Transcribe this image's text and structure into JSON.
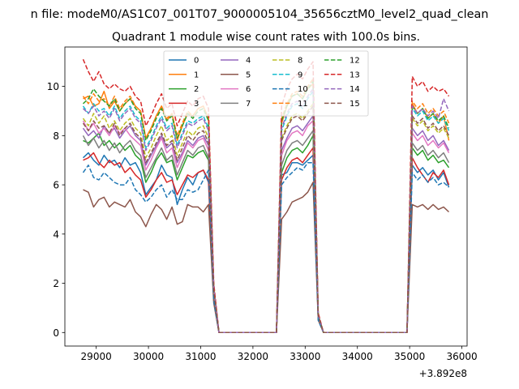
{
  "chart_data": {
    "type": "line",
    "suptitle": "n file: modeM0/AS1C07_001T07_9000005104_35656cztM0_level2_quad_clean",
    "title": "Quadrant 1 module wise count rates with 100.0s bins.",
    "xlabel": "",
    "ylabel": "",
    "x_offset_label": "+3.892e8",
    "xlim": [
      28400,
      36100
    ],
    "ylim": [
      -0.55,
      11.6
    ],
    "xticks": [
      29000,
      30000,
      31000,
      32000,
      33000,
      34000,
      35000,
      36000
    ],
    "xtick_labels": [
      "29000",
      "30000",
      "31000",
      "32000",
      "33000",
      "34000",
      "35000",
      "36000"
    ],
    "yticks": [
      0,
      2,
      4,
      6,
      8,
      10
    ],
    "ytick_labels": [
      "0",
      "2",
      "4",
      "6",
      "8",
      "10"
    ],
    "legend_position": "top-center",
    "x": [
      28750,
      28850,
      28950,
      29050,
      29150,
      29250,
      29350,
      29450,
      29550,
      29650,
      29750,
      29850,
      29950,
      30050,
      30150,
      30250,
      30350,
      30450,
      30550,
      30650,
      30750,
      30850,
      30950,
      31050,
      31150,
      31250,
      31350,
      31450,
      31550,
      31650,
      31750,
      31850,
      31950,
      32050,
      32150,
      32250,
      32350,
      32450,
      32550,
      32650,
      32750,
      32850,
      32950,
      33050,
      33150,
      33250,
      33350,
      33450,
      33550,
      33650,
      33750,
      33850,
      33950,
      34050,
      34150,
      34250,
      34350,
      34450,
      34550,
      34650,
      34750,
      34850,
      34950,
      35050,
      35150,
      35250,
      35350,
      35450,
      35550,
      35650,
      35750
    ],
    "series": [
      {
        "name": "0",
        "color": "#1f77b4",
        "dash": "solid",
        "values": [
          7.1,
          7.3,
          7.0,
          6.8,
          7.2,
          6.9,
          7.0,
          6.7,
          7.1,
          6.8,
          6.9,
          6.5,
          5.6,
          5.9,
          6.2,
          6.8,
          6.4,
          6.3,
          5.2,
          5.8,
          6.3,
          6.0,
          6.5,
          6.6,
          6.1,
          1.3,
          0,
          0,
          0,
          0,
          0,
          0,
          0,
          0,
          0,
          0,
          0,
          0,
          6.4,
          6.5,
          6.9,
          6.9,
          6.8,
          7.0,
          7.2,
          0.6,
          0,
          0,
          0,
          0,
          0,
          0,
          0,
          0,
          0,
          0,
          0,
          0,
          0,
          0,
          0,
          0,
          0,
          6.8,
          6.5,
          6.7,
          6.4,
          6.6,
          6.2,
          6.5,
          5.9
        ]
      },
      {
        "name": "1",
        "color": "#ff7f0e",
        "dash": "solid",
        "values": [
          9.5,
          9.6,
          9.2,
          9.3,
          9.8,
          9.1,
          9.4,
          9.0,
          9.3,
          9.5,
          9.2,
          9.0,
          7.9,
          8.3,
          8.8,
          9.2,
          8.6,
          8.9,
          7.8,
          8.4,
          8.9,
          8.8,
          9.1,
          9.2,
          8.7,
          1.8,
          0,
          0,
          0,
          0,
          0,
          0,
          0,
          0,
          0,
          0,
          0,
          0,
          8.5,
          9.2,
          9.6,
          9.7,
          9.5,
          9.9,
          10.1,
          0.7,
          0,
          0,
          0,
          0,
          0,
          0,
          0,
          0,
          0,
          0,
          0,
          0,
          0,
          0,
          0,
          0,
          0,
          9.3,
          8.9,
          9.1,
          8.7,
          8.9,
          8.5,
          8.8,
          7.8
        ]
      },
      {
        "name": "2",
        "color": "#2ca02c",
        "dash": "solid",
        "values": [
          7.8,
          7.7,
          7.9,
          8.1,
          7.6,
          7.8,
          7.5,
          7.7,
          7.4,
          7.6,
          7.2,
          7.0,
          6.1,
          6.5,
          7.0,
          7.3,
          6.9,
          7.0,
          6.2,
          6.7,
          7.2,
          7.1,
          7.3,
          7.4,
          7.0,
          1.6,
          0,
          0,
          0,
          0,
          0,
          0,
          0,
          0,
          0,
          0,
          0,
          0,
          6.5,
          7.1,
          7.4,
          7.5,
          7.3,
          7.6,
          8.0,
          0.7,
          0,
          0,
          0,
          0,
          0,
          0,
          0,
          0,
          0,
          0,
          0,
          0,
          0,
          0,
          0,
          0,
          0,
          7.5,
          7.2,
          7.4,
          7.0,
          7.2,
          6.9,
          7.0,
          6.7
        ]
      },
      {
        "name": "3",
        "color": "#d62728",
        "dash": "solid",
        "values": [
          7.0,
          7.1,
          7.3,
          6.9,
          6.7,
          7.0,
          6.8,
          6.9,
          6.5,
          6.7,
          6.4,
          6.2,
          5.5,
          5.8,
          6.2,
          6.5,
          6.1,
          6.2,
          5.6,
          6.0,
          6.4,
          6.3,
          6.5,
          6.6,
          6.2,
          1.5,
          0,
          0,
          0,
          0,
          0,
          0,
          0,
          0,
          0,
          0,
          0,
          0,
          6.2,
          6.7,
          7.0,
          7.1,
          6.9,
          7.2,
          7.5,
          0.6,
          0,
          0,
          0,
          0,
          0,
          0,
          0,
          0,
          0,
          0,
          0,
          0,
          0,
          0,
          0,
          0,
          0,
          7.1,
          6.7,
          6.4,
          6.1,
          6.5,
          6.3,
          6.6,
          6.0
        ]
      },
      {
        "name": "4",
        "color": "#9467bd",
        "dash": "solid",
        "values": [
          8.3,
          8.0,
          8.2,
          7.9,
          8.4,
          8.1,
          8.3,
          7.9,
          8.2,
          8.4,
          8.0,
          7.8,
          6.8,
          7.2,
          7.6,
          8.0,
          7.5,
          7.7,
          6.9,
          7.3,
          7.8,
          7.6,
          7.9,
          8.0,
          7.6,
          1.7,
          0,
          0,
          0,
          0,
          0,
          0,
          0,
          0,
          0,
          0,
          0,
          0,
          7.4,
          7.9,
          8.3,
          8.4,
          8.2,
          8.5,
          8.8,
          0.6,
          0,
          0,
          0,
          0,
          0,
          0,
          0,
          0,
          0,
          0,
          0,
          0,
          0,
          0,
          0,
          0,
          0,
          8.3,
          8.0,
          8.2,
          7.8,
          8.0,
          7.6,
          7.8,
          7.4
        ]
      },
      {
        "name": "5",
        "color": "#8c564b",
        "dash": "solid",
        "values": [
          5.8,
          5.7,
          5.1,
          5.4,
          5.5,
          5.1,
          5.3,
          5.2,
          5.1,
          5.4,
          4.9,
          4.7,
          4.3,
          4.8,
          5.2,
          5.0,
          4.6,
          5.1,
          4.4,
          4.5,
          5.2,
          5.1,
          5.1,
          4.9,
          5.2,
          1.2,
          0,
          0,
          0,
          0,
          0,
          0,
          0,
          0,
          0,
          0,
          0,
          0,
          4.6,
          4.9,
          5.3,
          5.4,
          5.5,
          5.7,
          6.1,
          0.5,
          0,
          0,
          0,
          0,
          0,
          0,
          0,
          0,
          0,
          0,
          0,
          0,
          0,
          0,
          0,
          0,
          0,
          5.2,
          5.1,
          5.2,
          5.0,
          5.2,
          5.0,
          5.1,
          4.9
        ]
      },
      {
        "name": "6",
        "color": "#e377c2",
        "dash": "solid",
        "values": [
          8.6,
          8.2,
          8.5,
          8.1,
          8.3,
          8.0,
          8.4,
          8.1,
          8.3,
          8.0,
          7.8,
          7.6,
          6.6,
          7.0,
          7.5,
          7.9,
          7.3,
          7.5,
          6.7,
          7.2,
          7.7,
          7.5,
          7.8,
          7.9,
          7.4,
          1.7,
          0,
          0,
          0,
          0,
          0,
          0,
          0,
          0,
          0,
          0,
          0,
          0,
          7.2,
          7.8,
          8.1,
          8.2,
          8.0,
          8.4,
          8.6,
          0.6,
          0,
          0,
          0,
          0,
          0,
          0,
          0,
          0,
          0,
          0,
          0,
          0,
          0,
          0,
          0,
          0,
          0,
          8.1,
          7.8,
          8.0,
          7.6,
          7.8,
          7.5,
          7.7,
          7.3
        ]
      },
      {
        "name": "7",
        "color": "#7f7f7f",
        "dash": "solid",
        "values": [
          8.0,
          7.6,
          7.9,
          7.5,
          7.8,
          7.4,
          7.7,
          7.3,
          7.6,
          7.8,
          7.4,
          7.2,
          6.3,
          6.7,
          7.1,
          7.5,
          7.0,
          7.2,
          6.4,
          6.9,
          7.4,
          7.2,
          7.5,
          7.6,
          7.1,
          1.6,
          0,
          0,
          0,
          0,
          0,
          0,
          0,
          0,
          0,
          0,
          0,
          0,
          6.8,
          7.4,
          7.7,
          7.8,
          7.6,
          7.9,
          8.2,
          0.6,
          0,
          0,
          0,
          0,
          0,
          0,
          0,
          0,
          0,
          0,
          0,
          0,
          0,
          0,
          0,
          0,
          0,
          7.7,
          7.4,
          7.6,
          7.2,
          7.4,
          7.1,
          7.3,
          6.9
        ]
      },
      {
        "name": "8",
        "color": "#bcbd22",
        "dash": "dashed",
        "values": [
          8.7,
          8.4,
          8.9,
          8.5,
          8.8,
          8.3,
          8.6,
          8.2,
          8.5,
          8.7,
          8.3,
          8.1,
          7.1,
          7.5,
          8.0,
          8.4,
          7.8,
          8.0,
          7.2,
          7.7,
          8.2,
          8.0,
          8.3,
          8.4,
          7.9,
          1.7,
          0,
          0,
          0,
          0,
          0,
          0,
          0,
          0,
          0,
          0,
          0,
          0,
          7.9,
          8.4,
          8.8,
          8.9,
          8.7,
          9.0,
          9.3,
          0.7,
          0,
          0,
          0,
          0,
          0,
          0,
          0,
          0,
          0,
          0,
          0,
          0,
          0,
          0,
          0,
          0,
          0,
          8.7,
          8.4,
          8.6,
          8.2,
          8.4,
          8.1,
          8.3,
          7.9
        ]
      },
      {
        "name": "9",
        "color": "#17becf",
        "dash": "dashed",
        "values": [
          9.2,
          8.9,
          9.3,
          9.0,
          9.1,
          8.8,
          9.2,
          8.7,
          9.0,
          9.2,
          8.8,
          8.6,
          7.5,
          7.9,
          8.4,
          8.8,
          8.3,
          8.5,
          7.6,
          8.1,
          8.6,
          8.5,
          8.7,
          8.8,
          8.3,
          1.8,
          0,
          0,
          0,
          0,
          0,
          0,
          0,
          0,
          0,
          0,
          0,
          0,
          8.2,
          8.8,
          9.2,
          9.3,
          9.1,
          9.5,
          9.8,
          0.7,
          0,
          0,
          0,
          0,
          0,
          0,
          0,
          0,
          0,
          0,
          0,
          0,
          0,
          0,
          0,
          0,
          0,
          9.1,
          8.8,
          9.0,
          8.6,
          8.8,
          8.5,
          8.7,
          8.2
        ]
      },
      {
        "name": "10",
        "color": "#1f77b4",
        "dash": "dashed",
        "values": [
          6.5,
          6.8,
          6.3,
          6.2,
          6.5,
          6.3,
          6.1,
          6.0,
          6.0,
          6.3,
          5.8,
          5.6,
          5.3,
          5.5,
          5.8,
          6.0,
          5.5,
          5.8,
          5.4,
          5.4,
          5.8,
          5.7,
          5.8,
          6.2,
          6.6,
          1.3,
          0,
          0,
          0,
          0,
          0,
          0,
          0,
          0,
          0,
          0,
          0,
          0,
          6.0,
          6.3,
          6.5,
          6.7,
          6.6,
          6.9,
          6.9,
          0.5,
          0,
          0,
          0,
          0,
          0,
          0,
          0,
          0,
          0,
          0,
          0,
          0,
          0,
          0,
          0,
          0,
          0,
          6.5,
          6.2,
          6.4,
          6.1,
          6.3,
          6.0,
          6.1,
          5.9
        ]
      },
      {
        "name": "11",
        "color": "#ff7f0e",
        "dash": "dashed",
        "values": [
          9.6,
          9.3,
          9.7,
          9.4,
          9.5,
          9.2,
          9.6,
          9.1,
          9.4,
          9.6,
          9.2,
          9.0,
          7.9,
          8.3,
          8.8,
          9.2,
          8.7,
          8.9,
          8.0,
          8.5,
          9.0,
          8.8,
          9.1,
          9.2,
          8.7,
          1.9,
          0,
          0,
          0,
          0,
          0,
          0,
          0,
          0,
          0,
          0,
          0,
          0,
          8.7,
          9.3,
          9.7,
          9.8,
          9.6,
          10.0,
          10.3,
          0.7,
          0,
          0,
          0,
          0,
          0,
          0,
          0,
          0,
          0,
          0,
          0,
          0,
          0,
          0,
          0,
          0,
          0,
          9.4,
          9.1,
          9.3,
          8.9,
          9.1,
          8.8,
          9.0,
          8.5
        ]
      },
      {
        "name": "12",
        "color": "#2ca02c",
        "dash": "dashed",
        "values": [
          9.3,
          9.5,
          9.9,
          9.6,
          9.4,
          9.2,
          9.5,
          9.0,
          9.3,
          9.5,
          9.1,
          8.9,
          7.8,
          8.2,
          8.7,
          9.1,
          8.6,
          8.8,
          7.9,
          8.4,
          8.9,
          8.7,
          9.0,
          9.1,
          8.6,
          1.8,
          0,
          0,
          0,
          0,
          0,
          0,
          0,
          0,
          0,
          0,
          0,
          0,
          8.6,
          9.2,
          9.6,
          9.7,
          9.5,
          9.9,
          10.2,
          0.7,
          0,
          0,
          0,
          0,
          0,
          0,
          0,
          0,
          0,
          0,
          0,
          0,
          0,
          0,
          0,
          0,
          0,
          9.2,
          8.9,
          9.1,
          8.7,
          8.9,
          8.6,
          8.8,
          8.3
        ]
      },
      {
        "name": "13",
        "color": "#d62728",
        "dash": "dashed",
        "values": [
          11.1,
          10.6,
          10.2,
          10.6,
          10.1,
          9.9,
          10.1,
          9.9,
          9.8,
          10.0,
          9.6,
          9.4,
          8.4,
          8.8,
          9.3,
          9.7,
          9.1,
          9.3,
          8.4,
          8.9,
          9.4,
          9.2,
          9.5,
          9.6,
          9.1,
          2.0,
          0,
          0,
          0,
          0,
          0,
          0,
          0,
          0,
          0,
          0,
          0,
          0,
          9.2,
          9.9,
          10.3,
          10.5,
          10.3,
          10.7,
          11.0,
          0.8,
          0,
          0,
          0,
          0,
          0,
          0,
          0,
          0,
          0,
          0,
          0,
          0,
          0,
          0,
          0,
          0,
          0,
          10.4,
          10.0,
          10.2,
          9.8,
          10.0,
          9.8,
          9.9,
          9.6
        ]
      },
      {
        "name": "14",
        "color": "#9467bd",
        "dash": "dashed",
        "values": [
          9.1,
          8.9,
          9.2,
          8.8,
          9.0,
          8.7,
          9.1,
          8.6,
          8.9,
          9.1,
          8.7,
          8.5,
          7.4,
          7.8,
          8.3,
          8.7,
          8.2,
          8.4,
          7.5,
          8.0,
          8.5,
          8.4,
          8.6,
          8.7,
          8.2,
          1.8,
          0,
          0,
          0,
          0,
          0,
          0,
          0,
          0,
          0,
          0,
          0,
          0,
          8.3,
          8.9,
          9.3,
          9.4,
          9.2,
          9.6,
          9.9,
          0.7,
          0,
          0,
          0,
          0,
          0,
          0,
          0,
          0,
          0,
          0,
          0,
          0,
          0,
          0,
          0,
          0,
          0,
          9.2,
          8.9,
          9.1,
          8.8,
          9.0,
          8.7,
          9.5,
          9.0
        ]
      },
      {
        "name": "15",
        "color": "#8c564b",
        "dash": "dashed",
        "values": [
          8.5,
          8.2,
          8.6,
          8.3,
          8.4,
          8.1,
          8.5,
          8.0,
          8.3,
          8.5,
          8.1,
          7.9,
          6.9,
          7.3,
          7.7,
          8.1,
          7.6,
          7.8,
          7.0,
          7.5,
          8.0,
          7.8,
          8.1,
          8.2,
          7.7,
          1.7,
          0,
          0,
          0,
          0,
          0,
          0,
          0,
          0,
          0,
          0,
          0,
          0,
          7.8,
          8.3,
          8.7,
          8.8,
          8.6,
          8.9,
          9.2,
          0.7,
          0,
          0,
          0,
          0,
          0,
          0,
          0,
          0,
          0,
          0,
          0,
          0,
          0,
          0,
          0,
          0,
          0,
          8.8,
          8.5,
          8.7,
          8.3,
          8.5,
          8.2,
          8.4,
          8.0
        ]
      }
    ]
  }
}
